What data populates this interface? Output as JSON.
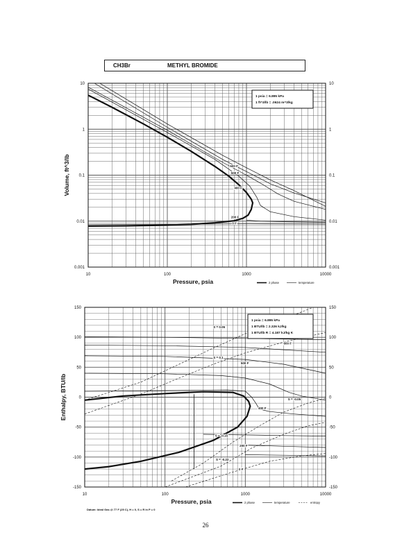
{
  "header": {
    "formula": "CH3Br",
    "name": "METHYL BROMIDE"
  },
  "page_number": "26",
  "colors": {
    "ink": "#111111",
    "grid": "#555555",
    "twophase": "#000000"
  },
  "chart_data": [
    {
      "type": "line",
      "xscale": "log",
      "yscale": "log",
      "xlim": [
        10,
        10000
      ],
      "ylim": [
        0.001,
        10
      ],
      "xlabel": "Pressure,  psia",
      "ylabel": "Volume, ft^3/lb",
      "x_ticks": [
        "10",
        "100",
        "1000",
        "10000"
      ],
      "y_ticks": [
        "0.001",
        "0.01",
        "0.1",
        "1",
        "10"
      ],
      "grid": true,
      "info_box": [
        "1 psia  =  6.895 kPa",
        "1 ft^3/lb  =  .0624 m^3/kg"
      ],
      "legend": {
        "placement": "bottom-right",
        "items": [
          "2 phase",
          "temperature"
        ]
      },
      "series": [
        {
          "kind": "2phase",
          "points": [
            [
              10,
              5.5
            ],
            [
              20,
              3.0
            ],
            [
              50,
              1.3
            ],
            [
              100,
              0.67
            ],
            [
              200,
              0.33
            ],
            [
              400,
              0.155
            ],
            [
              600,
              0.095
            ],
            [
              800,
              0.062
            ],
            [
              1000,
              0.042
            ],
            [
              1150,
              0.03
            ],
            [
              1200,
              0.025
            ],
            [
              1150,
              0.018
            ],
            [
              1050,
              0.0135
            ],
            [
              900,
              0.0115
            ],
            [
              700,
              0.0102
            ],
            [
              400,
              0.0092
            ],
            [
              200,
              0.0085
            ],
            [
              100,
              0.0082
            ],
            [
              30,
              0.0079
            ],
            [
              10,
              0.0078
            ]
          ]
        },
        {
          "kind": "temperature",
          "points": [
            [
              10,
              7.5
            ],
            [
              100,
              0.85
            ],
            [
              400,
              0.22
            ],
            [
              800,
              0.095
            ],
            [
              1100,
              0.058
            ],
            [
              1350,
              0.033
            ],
            [
              1500,
              0.022
            ],
            [
              2000,
              0.016
            ],
            [
              4000,
              0.0125
            ],
            [
              10000,
              0.0105
            ]
          ]
        },
        {
          "kind": "temperature",
          "points": [
            [
              10,
              8.2
            ],
            [
              100,
              0.95
            ],
            [
              500,
              0.19
            ],
            [
              1000,
              0.1
            ],
            [
              1600,
              0.063
            ],
            [
              2500,
              0.039
            ],
            [
              4000,
              0.027
            ],
            [
              10000,
              0.018
            ]
          ]
        },
        {
          "kind": "temperature",
          "points": [
            [
              12,
              10
            ],
            [
              100,
              1.1
            ],
            [
              500,
              0.22
            ],
            [
              1000,
              0.12
            ],
            [
              2000,
              0.065
            ],
            [
              4000,
              0.041
            ],
            [
              10000,
              0.025
            ]
          ]
        },
        {
          "kind": "temperature",
          "points": [
            [
              14,
              10
            ],
            [
              100,
              1.3
            ],
            [
              500,
              0.27
            ],
            [
              1000,
              0.145
            ],
            [
              2000,
              0.079
            ],
            [
              4000,
              0.046
            ],
            [
              10000,
              0.021
            ]
          ]
        },
        {
          "kind": "temperature",
          "points": [
            [
              10,
              0.0084
            ],
            [
              100,
              0.0085
            ],
            [
              1000,
              0.0087
            ],
            [
              10000,
              0.0086
            ]
          ]
        },
        {
          "kind": "temperature",
          "points": [
            [
              1000,
              0.0105
            ],
            [
              1500,
              0.01
            ],
            [
              3000,
              0.0097
            ],
            [
              10000,
              0.0094
            ]
          ]
        }
      ],
      "annotations": [
        {
          "text": "600 F",
          "x": 620,
          "y": 0.15
        },
        {
          "text": "500 F",
          "x": 640,
          "y": 0.105
        },
        {
          "text": "400 F",
          "x": 700,
          "y": 0.05
        },
        {
          "text": "200 F",
          "x": 640,
          "y": 0.0115
        },
        {
          "text": "0 F",
          "x": 660,
          "y": 0.0085
        }
      ]
    },
    {
      "type": "line",
      "xscale": "log",
      "yscale": "linear",
      "xlim": [
        10,
        10000
      ],
      "ylim": [
        -150,
        150
      ],
      "xlabel": "Pressure,  psia",
      "ylabel": "Enthalpy, BTU/lb",
      "x_ticks": [
        "10",
        "100",
        "1000",
        "10000"
      ],
      "y_ticks": [
        "-150",
        "-100",
        "-50",
        "0",
        "50",
        "100",
        "150"
      ],
      "grid": true,
      "info_box": [
        "1 psia  =  6.895 kPa",
        "1 BTU/lb  =  2.326 kJ/kg",
        "1 BTU/lb R  =  4.187 kJ/kg K"
      ],
      "datum_note": "Datum: Ideal Gas @ 77 F (25 C),  H = 0,  S = R ln P = 0",
      "legend": {
        "placement": "bottom-right",
        "items": [
          "2 phase",
          "temperature",
          "entropy"
        ]
      },
      "series": [
        {
          "kind": "2phase",
          "points": [
            [
              10,
              -5
            ],
            [
              30,
              2
            ],
            [
              100,
              6
            ],
            [
              300,
              9
            ],
            [
              700,
              8
            ],
            [
              950,
              2
            ],
            [
              1100,
              -7
            ],
            [
              1150,
              -15
            ],
            [
              1050,
              -32
            ],
            [
              800,
              -50
            ],
            [
              400,
              -72
            ],
            [
              150,
              -92
            ],
            [
              50,
              -107
            ],
            [
              20,
              -116
            ],
            [
              10,
              -120
            ]
          ]
        },
        {
          "kind": "vline",
          "points": [
            [
              230,
              -120
            ],
            [
              230,
              5
            ]
          ]
        },
        {
          "kind": "temperature",
          "points": [
            [
              10,
              10
            ],
            [
              100,
              11
            ],
            [
              600,
              12
            ],
            [
              1000,
              10
            ],
            [
              1200,
              0
            ],
            [
              1350,
              -10
            ],
            [
              1500,
              -20
            ],
            [
              2000,
              -24
            ],
            [
              4000,
              -28
            ],
            [
              10000,
              -32
            ]
          ]
        },
        {
          "kind": "temperature",
          "points": [
            [
              10,
              40
            ],
            [
              100,
              39
            ],
            [
              500,
              36
            ],
            [
              1000,
              32
            ],
            [
              2000,
              22
            ],
            [
              3500,
              8
            ],
            [
              5000,
              2
            ],
            [
              10000,
              -5
            ]
          ]
        },
        {
          "kind": "temperature",
          "points": [
            [
              10,
              69
            ],
            [
              100,
              68
            ],
            [
              1000,
              63
            ],
            [
              3000,
              55
            ],
            [
              10000,
              40
            ]
          ]
        },
        {
          "kind": "temperature",
          "points": [
            [
              10,
              87
            ],
            [
              100,
              86
            ],
            [
              1000,
              83
            ],
            [
              10000,
              75
            ]
          ]
        },
        {
          "kind": "temperature",
          "points": [
            [
              10,
              101
            ],
            [
              100,
              100
            ],
            [
              10000,
              96
            ]
          ]
        },
        {
          "kind": "temperature",
          "points": [
            [
              1000,
              -80
            ],
            [
              3000,
              -82
            ],
            [
              10000,
              -84
            ]
          ]
        },
        {
          "kind": "temperature",
          "points": [
            [
              1000,
              -96
            ],
            [
              3000,
              -97
            ],
            [
              10000,
              -98
            ]
          ]
        },
        {
          "kind": "temperature",
          "points": [
            [
              300,
              -62
            ],
            [
              1000,
              -63
            ],
            [
              3000,
              -64
            ],
            [
              10000,
              -65
            ]
          ]
        },
        {
          "kind": "entropy",
          "points": [
            [
              10,
              -5
            ],
            [
              50,
              25
            ],
            [
              150,
              55
            ],
            [
              400,
              82
            ],
            [
              1000,
              106
            ],
            [
              2500,
              126
            ],
            [
              7000,
              150
            ]
          ]
        },
        {
          "kind": "entropy",
          "points": [
            [
              10,
              -28
            ],
            [
              50,
              5
            ],
            [
              150,
              32
            ],
            [
              400,
              55
            ],
            [
              1000,
              74
            ],
            [
              3000,
              92
            ],
            [
              10000,
              108
            ]
          ]
        },
        {
          "kind": "entropy",
          "points": [
            [
              120,
              -140
            ],
            [
              300,
              -110
            ],
            [
              700,
              -75
            ],
            [
              1500,
              -48
            ],
            [
              3000,
              -25
            ],
            [
              6000,
              -10
            ],
            [
              10000,
              -2
            ]
          ]
        },
        {
          "kind": "entropy",
          "points": [
            [
              100,
              -150
            ],
            [
              500,
              -115
            ],
            [
              1200,
              -85
            ],
            [
              3000,
              -62
            ],
            [
              6000,
              -48
            ],
            [
              10000,
              -42
            ]
          ]
        },
        {
          "kind": "entropy",
          "points": [
            [
              180,
              -150
            ],
            [
              700,
              -125
            ],
            [
              2000,
              -107
            ],
            [
              5000,
              -98
            ],
            [
              10000,
              -94
            ]
          ]
        }
      ],
      "annotations": [
        {
          "text": "S = 0.05",
          "x": 400,
          "y": 115
        },
        {
          "text": "600 F",
          "x": 3000,
          "y": 88
        },
        {
          "text": "S = 0.1",
          "x": 400,
          "y": 64
        },
        {
          "text": "500 F",
          "x": 880,
          "y": 55
        },
        {
          "text": "S = -0.05",
          "x": 3400,
          "y": -5
        },
        {
          "text": "400 F",
          "x": 1450,
          "y": -20
        },
        {
          "text": "S = -0.15",
          "x": 420,
          "y": -66
        },
        {
          "text": "200 F",
          "x": 850,
          "y": -83
        },
        {
          "text": "S = -0.22",
          "x": 430,
          "y": -106
        },
        {
          "text": "0 F",
          "x": 830,
          "y": -122
        }
      ]
    }
  ]
}
